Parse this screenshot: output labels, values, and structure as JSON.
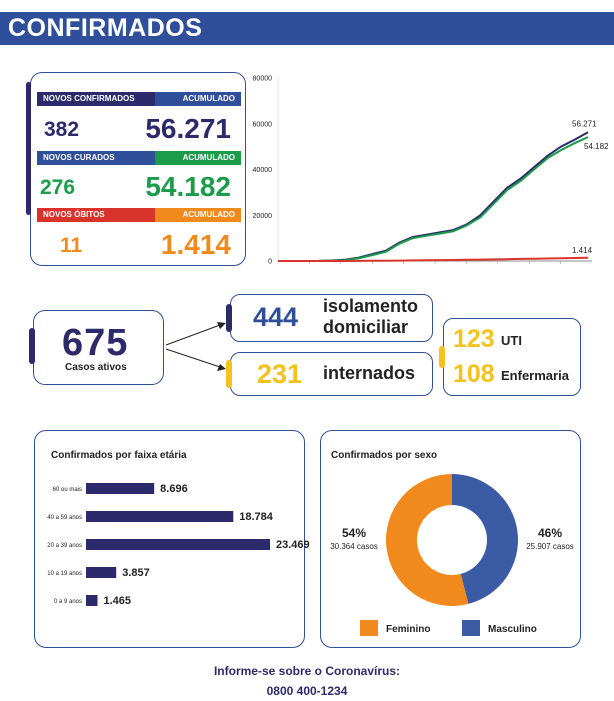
{
  "header": {
    "title": "CONFIRMADOS"
  },
  "stats": {
    "confirmados": {
      "label": "NOVOS CONFIRMADOS",
      "acc_label": "ACUMULADO",
      "new": "382",
      "acc": "56.271"
    },
    "curados": {
      "label": "NOVOS CURADOS",
      "acc_label": "ACUMULADO",
      "new": "276",
      "acc": "54.182"
    },
    "obitos": {
      "label": "NOVOS ÓBITOS",
      "acc_label": "ACUMULADO",
      "new": "11",
      "acc": "1.414"
    }
  },
  "colors": {
    "header": "#2f4f9a",
    "navy": "#2c2a6b",
    "blue": "#2f4f9a",
    "green": "#1a9c4a",
    "red": "#d9342b",
    "orange": "#f08a1c",
    "yellow": "#f4c21c",
    "barNavy": "#2c2a6b",
    "pieOrange": "#f08a1c",
    "pieBlue": "#3b5ba5"
  },
  "ativos": {
    "total": "675",
    "label": "Casos ativos",
    "isolamento": {
      "value": "444",
      "label_line1": "isolamento",
      "label_line2": "domiciliar"
    },
    "internados": {
      "value": "231",
      "label": "internados"
    },
    "uti": {
      "value": "123",
      "label": "UTI"
    },
    "enfermaria": {
      "value": "108",
      "label": "Enfermaria"
    }
  },
  "age_chart": {
    "title": "Confirmados por faixa etária"
  },
  "sex_chart": {
    "title": "Confirmados por sexo"
  },
  "chart_data": [
    {
      "type": "line",
      "y_ticks": [
        "0",
        "20000",
        "40000",
        "60000",
        "80000"
      ],
      "ylim": [
        0,
        80000
      ],
      "grid": false,
      "end_labels": [
        "56.271",
        "54.182",
        "1.414"
      ],
      "series": [
        {
          "key": "confirmados",
          "color": "#2c2a6b",
          "values": [
            0,
            0,
            0,
            50,
            200,
            600,
            1500,
            3000,
            4500,
            8000,
            10500,
            11500,
            12500,
            13500,
            16000,
            20000,
            26000,
            32000,
            36000,
            41000,
            46000,
            50000,
            53000,
            56271
          ]
        },
        {
          "key": "curados",
          "color": "#1a9c4a",
          "values": [
            0,
            0,
            0,
            20,
            100,
            400,
            1200,
            2600,
            4000,
            7500,
            10000,
            11000,
            12000,
            13000,
            15500,
            19000,
            25000,
            31000,
            35000,
            40000,
            45000,
            48500,
            51500,
            54182
          ]
        },
        {
          "key": "obitos",
          "color": "#d9342b",
          "values": [
            0,
            0,
            0,
            0,
            5,
            15,
            40,
            80,
            120,
            180,
            250,
            320,
            380,
            440,
            520,
            600,
            700,
            800,
            900,
            1000,
            1100,
            1200,
            1300,
            1414
          ]
        }
      ]
    },
    {
      "type": "bar",
      "orientation": "horizontal",
      "title": "Confirmados por faixa etária",
      "categories": [
        "60 ou mais",
        "40 a 59 anos",
        "20 a 39 anos",
        "10 a 19 anos",
        "0 a 9 anos"
      ],
      "values": [
        8696,
        18784,
        23469,
        3857,
        1465
      ],
      "value_labels": [
        "8.696",
        "18.784",
        "23.469",
        "3.857",
        "1.465"
      ]
    },
    {
      "type": "pie",
      "title": "Confirmados por sexo",
      "slices": [
        {
          "name": "Feminino",
          "percent": 54,
          "percent_label": "54%",
          "value_label": "30.364 casos",
          "color": "#f08a1c"
        },
        {
          "name": "Masculino",
          "percent": 46,
          "percent_label": "46%",
          "value_label": "25.907 casos",
          "color": "#3b5ba5"
        }
      ]
    }
  ],
  "footer": {
    "line1": "Informe-se sobre o Coronavírus:",
    "line2": "0800 400-1234"
  }
}
